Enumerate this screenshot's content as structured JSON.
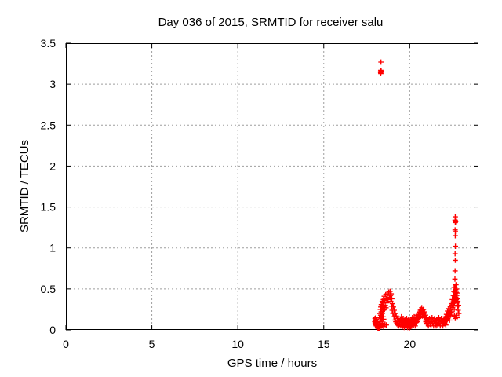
{
  "chart_data": {
    "type": "scatter",
    "title": "Day 036 of 2015, SRMTID for receiver salu",
    "xlabel": "GPS time / hours",
    "ylabel": "SRMTID / TECUs",
    "xlim": [
      0,
      24
    ],
    "ylim": [
      0,
      3.5
    ],
    "grid": true,
    "legend": "none",
    "marker": "plus",
    "colors": {
      "marker": "#ff0000",
      "grid": "#9e9e9e",
      "axis": "#000000",
      "text": "#000000"
    },
    "xticks": [
      {
        "v": 0,
        "label": "0"
      },
      {
        "v": 5,
        "label": "5"
      },
      {
        "v": 10,
        "label": "10"
      },
      {
        "v": 15,
        "label": "15"
      },
      {
        "v": 20,
        "label": "20"
      }
    ],
    "yticks": [
      {
        "v": 0,
        "label": "0"
      },
      {
        "v": 0.5,
        "label": "0.5"
      },
      {
        "v": 1,
        "label": "1"
      },
      {
        "v": 1.5,
        "label": "1.5"
      },
      {
        "v": 2,
        "label": "2"
      },
      {
        "v": 2.5,
        "label": "2.5"
      },
      {
        "v": 3,
        "label": "3"
      },
      {
        "v": 3.5,
        "label": "3.5"
      }
    ],
    "series": [
      {
        "name": "SRMTID",
        "points": [
          [
            17.97,
            0.1
          ],
          [
            17.98,
            0.14
          ],
          [
            17.99,
            0.08
          ],
          [
            18.0,
            0.12
          ],
          [
            18.01,
            0.06
          ],
          [
            18.02,
            0.11
          ],
          [
            18.03,
            0.15
          ],
          [
            18.04,
            0.09
          ],
          [
            18.05,
            0.13
          ],
          [
            18.06,
            0.05
          ],
          [
            18.07,
            0.1
          ],
          [
            18.09,
            0.07
          ],
          [
            18.1,
            0.12
          ],
          [
            18.12,
            0.04
          ],
          [
            18.13,
            0.09
          ],
          [
            18.15,
            0.02
          ],
          [
            18.16,
            0.06
          ],
          [
            18.18,
            0.03
          ],
          [
            18.19,
            0.02
          ],
          [
            18.2,
            0.04
          ],
          [
            18.2,
            0.02
          ],
          [
            18.21,
            0.03
          ],
          [
            18.22,
            0.02
          ],
          [
            18.22,
            0.05
          ],
          [
            18.23,
            0.03
          ],
          [
            18.24,
            0.06
          ],
          [
            18.3,
            3.16
          ],
          [
            18.31,
            3.14
          ],
          [
            18.32,
            3.17
          ],
          [
            18.33,
            3.15
          ],
          [
            18.34,
            3.16
          ],
          [
            18.32,
            3.13
          ],
          [
            18.33,
            3.27
          ],
          [
            18.26,
            0.12
          ],
          [
            18.27,
            0.2
          ],
          [
            18.28,
            0.15
          ],
          [
            18.29,
            0.25
          ],
          [
            18.3,
            0.1
          ],
          [
            18.31,
            0.18
          ],
          [
            18.32,
            0.28
          ],
          [
            18.33,
            0.14
          ],
          [
            18.34,
            0.22
          ],
          [
            18.35,
            0.31
          ],
          [
            18.36,
            0.17
          ],
          [
            18.37,
            0.25
          ],
          [
            18.38,
            0.12
          ],
          [
            18.39,
            0.29
          ],
          [
            18.4,
            0.35
          ],
          [
            18.41,
            0.2
          ],
          [
            18.42,
            0.27
          ],
          [
            18.43,
            0.08
          ],
          [
            18.44,
            0.33
          ],
          [
            18.45,
            0.16
          ],
          [
            18.46,
            0.24
          ],
          [
            18.47,
            0.37
          ],
          [
            18.48,
            0.28
          ],
          [
            18.49,
            0.13
          ],
          [
            18.5,
            0.33
          ],
          [
            18.52,
            0.41
          ],
          [
            18.54,
            0.25
          ],
          [
            18.56,
            0.36
          ],
          [
            18.58,
            0.3
          ],
          [
            18.6,
            0.43
          ],
          [
            18.62,
            0.27
          ],
          [
            18.64,
            0.38
          ],
          [
            18.68,
            0.33
          ],
          [
            18.7,
            0.44
          ],
          [
            18.74,
            0.37
          ],
          [
            18.78,
            0.46
          ],
          [
            18.82,
            0.4
          ],
          [
            18.86,
            0.47
          ],
          [
            18.4,
            0.05
          ],
          [
            18.48,
            0.04
          ],
          [
            18.56,
            0.07
          ],
          [
            18.64,
            0.06
          ],
          [
            18.88,
            0.42
          ],
          [
            18.9,
            0.35
          ],
          [
            18.92,
            0.44
          ],
          [
            18.94,
            0.29
          ],
          [
            18.96,
            0.38
          ],
          [
            18.98,
            0.24
          ],
          [
            19.0,
            0.32
          ],
          [
            19.02,
            0.2
          ],
          [
            19.05,
            0.28
          ],
          [
            19.08,
            0.16
          ],
          [
            19.1,
            0.24
          ],
          [
            19.13,
            0.12
          ],
          [
            19.16,
            0.2
          ],
          [
            19.19,
            0.1
          ],
          [
            19.22,
            0.17
          ],
          [
            19.25,
            0.08
          ],
          [
            19.28,
            0.14
          ],
          [
            19.31,
            0.06
          ],
          [
            19.34,
            0.12
          ],
          [
            19.37,
            0.05
          ],
          [
            19.4,
            0.1
          ],
          [
            19.43,
            0.07
          ],
          [
            19.46,
            0.13
          ],
          [
            19.48,
            0.05
          ],
          [
            19.5,
            0.11
          ],
          [
            19.52,
            0.16
          ],
          [
            19.54,
            0.07
          ],
          [
            19.56,
            0.12
          ],
          [
            19.58,
            0.04
          ],
          [
            19.6,
            0.09
          ],
          [
            19.62,
            0.14
          ],
          [
            19.64,
            0.06
          ],
          [
            19.66,
            0.11
          ],
          [
            19.68,
            0.03
          ],
          [
            19.7,
            0.08
          ],
          [
            19.72,
            0.13
          ],
          [
            19.74,
            0.05
          ],
          [
            19.76,
            0.1
          ],
          [
            19.78,
            0.04
          ],
          [
            19.8,
            0.09
          ],
          [
            19.82,
            0.14
          ],
          [
            19.84,
            0.06
          ],
          [
            19.86,
            0.11
          ],
          [
            19.88,
            0.03
          ],
          [
            19.9,
            0.08
          ],
          [
            19.92,
            0.12
          ],
          [
            19.94,
            0.05
          ],
          [
            19.96,
            0.09
          ],
          [
            19.98,
            0.02
          ],
          [
            20.0,
            0.07
          ],
          [
            20.03,
            0.11
          ],
          [
            20.06,
            0.04
          ],
          [
            20.08,
            0.08
          ],
          [
            20.1,
            0.13
          ],
          [
            20.12,
            0.05
          ],
          [
            20.14,
            0.1
          ],
          [
            20.16,
            0.15
          ],
          [
            20.18,
            0.07
          ],
          [
            20.2,
            0.12
          ],
          [
            20.22,
            0.06
          ],
          [
            20.24,
            0.11
          ],
          [
            20.26,
            0.16
          ],
          [
            20.28,
            0.08
          ],
          [
            20.3,
            0.13
          ],
          [
            20.32,
            0.05
          ],
          [
            20.34,
            0.1
          ],
          [
            20.36,
            0.15
          ],
          [
            20.38,
            0.09
          ],
          [
            20.4,
            0.14
          ],
          [
            20.42,
            0.18
          ],
          [
            20.44,
            0.1
          ],
          [
            20.46,
            0.16
          ],
          [
            20.48,
            0.12
          ],
          [
            20.5,
            0.19
          ],
          [
            20.52,
            0.14
          ],
          [
            20.54,
            0.21
          ],
          [
            20.56,
            0.15
          ],
          [
            20.58,
            0.22
          ],
          [
            20.6,
            0.17
          ],
          [
            20.62,
            0.24
          ],
          [
            20.64,
            0.19
          ],
          [
            20.66,
            0.25
          ],
          [
            20.68,
            0.21
          ],
          [
            20.7,
            0.27
          ],
          [
            20.72,
            0.22
          ],
          [
            20.74,
            0.17
          ],
          [
            20.76,
            0.24
          ],
          [
            20.78,
            0.19
          ],
          [
            20.8,
            0.25
          ],
          [
            20.82,
            0.2
          ],
          [
            20.84,
            0.15
          ],
          [
            20.86,
            0.22
          ],
          [
            20.88,
            0.17
          ],
          [
            20.9,
            0.12
          ],
          [
            20.92,
            0.18
          ],
          [
            20.94,
            0.1
          ],
          [
            20.96,
            0.15
          ],
          [
            20.98,
            0.08
          ],
          [
            21.0,
            0.13
          ],
          [
            21.03,
            0.07
          ],
          [
            21.06,
            0.12
          ],
          [
            21.09,
            0.05
          ],
          [
            21.12,
            0.1
          ],
          [
            21.15,
            0.14
          ],
          [
            21.18,
            0.07
          ],
          [
            21.21,
            0.12
          ],
          [
            21.24,
            0.05
          ],
          [
            21.27,
            0.1
          ],
          [
            21.3,
            0.15
          ],
          [
            21.33,
            0.08
          ],
          [
            21.36,
            0.12
          ],
          [
            21.39,
            0.05
          ],
          [
            21.42,
            0.1
          ],
          [
            21.45,
            0.14
          ],
          [
            21.48,
            0.07
          ],
          [
            21.51,
            0.11
          ],
          [
            21.54,
            0.05
          ],
          [
            21.57,
            0.09
          ],
          [
            21.6,
            0.13
          ],
          [
            21.63,
            0.06
          ],
          [
            21.66,
            0.11
          ],
          [
            21.69,
            0.15
          ],
          [
            21.72,
            0.08
          ],
          [
            21.75,
            0.12
          ],
          [
            21.78,
            0.05
          ],
          [
            21.81,
            0.1
          ],
          [
            21.84,
            0.14
          ],
          [
            21.87,
            0.07
          ],
          [
            21.9,
            0.11
          ],
          [
            21.93,
            0.05
          ],
          [
            21.96,
            0.09
          ],
          [
            21.99,
            0.13
          ],
          [
            22.02,
            0.08
          ],
          [
            22.04,
            0.14
          ],
          [
            22.06,
            0.1
          ],
          [
            22.08,
            0.16
          ],
          [
            22.1,
            0.06
          ],
          [
            22.12,
            0.13
          ],
          [
            22.14,
            0.19
          ],
          [
            22.16,
            0.11
          ],
          [
            22.18,
            0.17
          ],
          [
            22.2,
            0.23
          ],
          [
            22.22,
            0.14
          ],
          [
            22.24,
            0.2
          ],
          [
            22.26,
            0.26
          ],
          [
            22.28,
            0.17
          ],
          [
            22.3,
            0.23
          ],
          [
            22.32,
            0.12
          ],
          [
            22.34,
            0.21
          ],
          [
            22.36,
            0.28
          ],
          [
            22.38,
            0.18
          ],
          [
            22.4,
            0.25
          ],
          [
            22.42,
            0.32
          ],
          [
            22.44,
            0.22
          ],
          [
            22.46,
            0.3
          ],
          [
            22.48,
            0.37
          ],
          [
            22.5,
            0.27
          ],
          [
            22.52,
            0.34
          ],
          [
            22.54,
            0.42
          ],
          [
            22.55,
            0.3
          ],
          [
            22.56,
            0.47
          ],
          [
            22.57,
            0.36
          ],
          [
            22.58,
            0.52
          ],
          [
            22.59,
            0.25
          ],
          [
            22.6,
            0.41
          ],
          [
            22.61,
            0.33
          ],
          [
            22.62,
            0.46
          ],
          [
            22.63,
            0.38
          ],
          [
            22.64,
            0.52
          ],
          [
            22.65,
            0.44
          ],
          [
            22.66,
            0.35
          ],
          [
            22.67,
            0.49
          ],
          [
            22.68,
            0.4
          ],
          [
            22.69,
            0.55
          ],
          [
            22.7,
            0.46
          ],
          [
            22.71,
            0.37
          ],
          [
            22.72,
            0.5
          ],
          [
            22.73,
            0.42
          ],
          [
            22.74,
            0.33
          ],
          [
            22.75,
            0.45
          ],
          [
            22.76,
            0.38
          ],
          [
            22.78,
            0.29
          ],
          [
            22.8,
            0.35
          ],
          [
            22.82,
            0.24
          ],
          [
            22.84,
            0.3
          ],
          [
            22.86,
            0.2
          ],
          [
            22.6,
            0.17
          ],
          [
            22.65,
            0.14
          ],
          [
            22.7,
            0.18
          ],
          [
            22.75,
            0.15
          ],
          [
            22.63,
            0.62
          ],
          [
            22.64,
            0.72
          ],
          [
            22.65,
            0.85
          ],
          [
            22.64,
            0.93
          ],
          [
            22.66,
            1.02
          ],
          [
            22.65,
            1.15
          ],
          [
            22.66,
            1.2
          ],
          [
            22.64,
            1.22
          ],
          [
            22.65,
            1.31
          ],
          [
            22.66,
            1.33
          ],
          [
            22.64,
            1.34
          ],
          [
            22.67,
            1.32
          ],
          [
            22.65,
            1.38
          ]
        ]
      }
    ]
  }
}
